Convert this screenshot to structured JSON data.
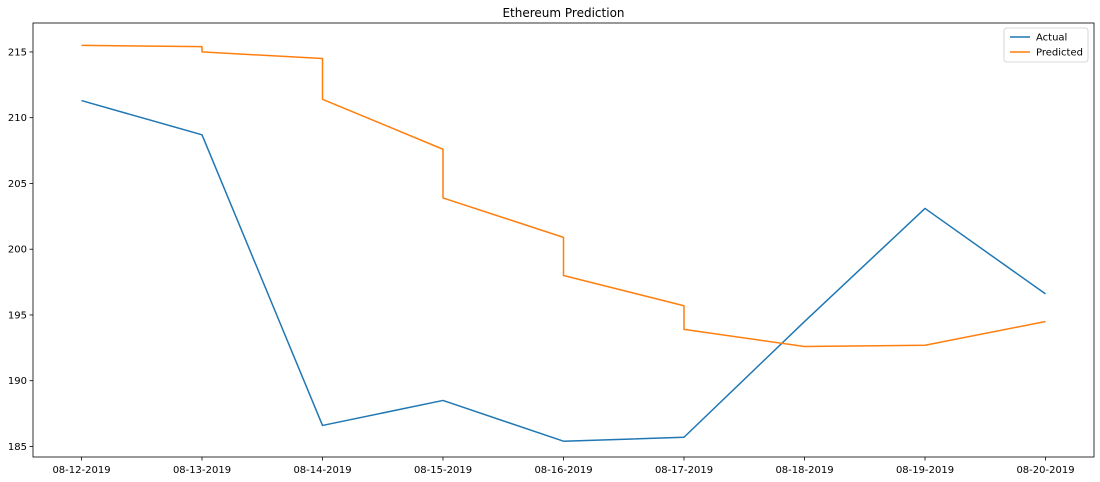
{
  "chart_data": {
    "type": "line",
    "title": "Ethereum Prediction",
    "xlabel": "",
    "ylabel": "",
    "categories": [
      "08-12-2019",
      "08-13-2019",
      "08-14-2019",
      "08-15-2019",
      "08-16-2019",
      "08-17-2019",
      "08-18-2019",
      "08-19-2019",
      "08-20-2019"
    ],
    "yticks": [
      185,
      190,
      195,
      200,
      205,
      210,
      215
    ],
    "ylim": [
      184.2,
      217.2
    ],
    "grid": false,
    "legend": "top-right",
    "series": [
      {
        "name": "Actual",
        "color": "#1f77b4",
        "x": [
          "08-12-2019",
          "08-13-2019",
          "08-14-2019",
          "08-15-2019",
          "08-16-2019",
          "08-17-2019",
          "08-18-2019",
          "08-19-2019",
          "08-20-2019"
        ],
        "values": [
          211.3,
          208.7,
          186.6,
          188.5,
          185.4,
          185.7,
          194.5,
          203.1,
          196.6
        ]
      },
      {
        "name": "Predicted",
        "color": "#ff7f0e",
        "x": [
          "08-12-2019",
          "08-13-2019",
          "08-13-2019",
          "08-14-2019",
          "08-14-2019",
          "08-15-2019",
          "08-15-2019",
          "08-16-2019",
          "08-16-2019",
          "08-17-2019",
          "08-17-2019",
          "08-18-2019",
          "08-19-2019",
          "08-20-2019"
        ],
        "values": [
          215.5,
          215.4,
          215.0,
          214.5,
          211.4,
          207.6,
          203.9,
          200.9,
          198.0,
          195.7,
          193.9,
          192.6,
          192.7,
          194.5
        ]
      }
    ]
  }
}
